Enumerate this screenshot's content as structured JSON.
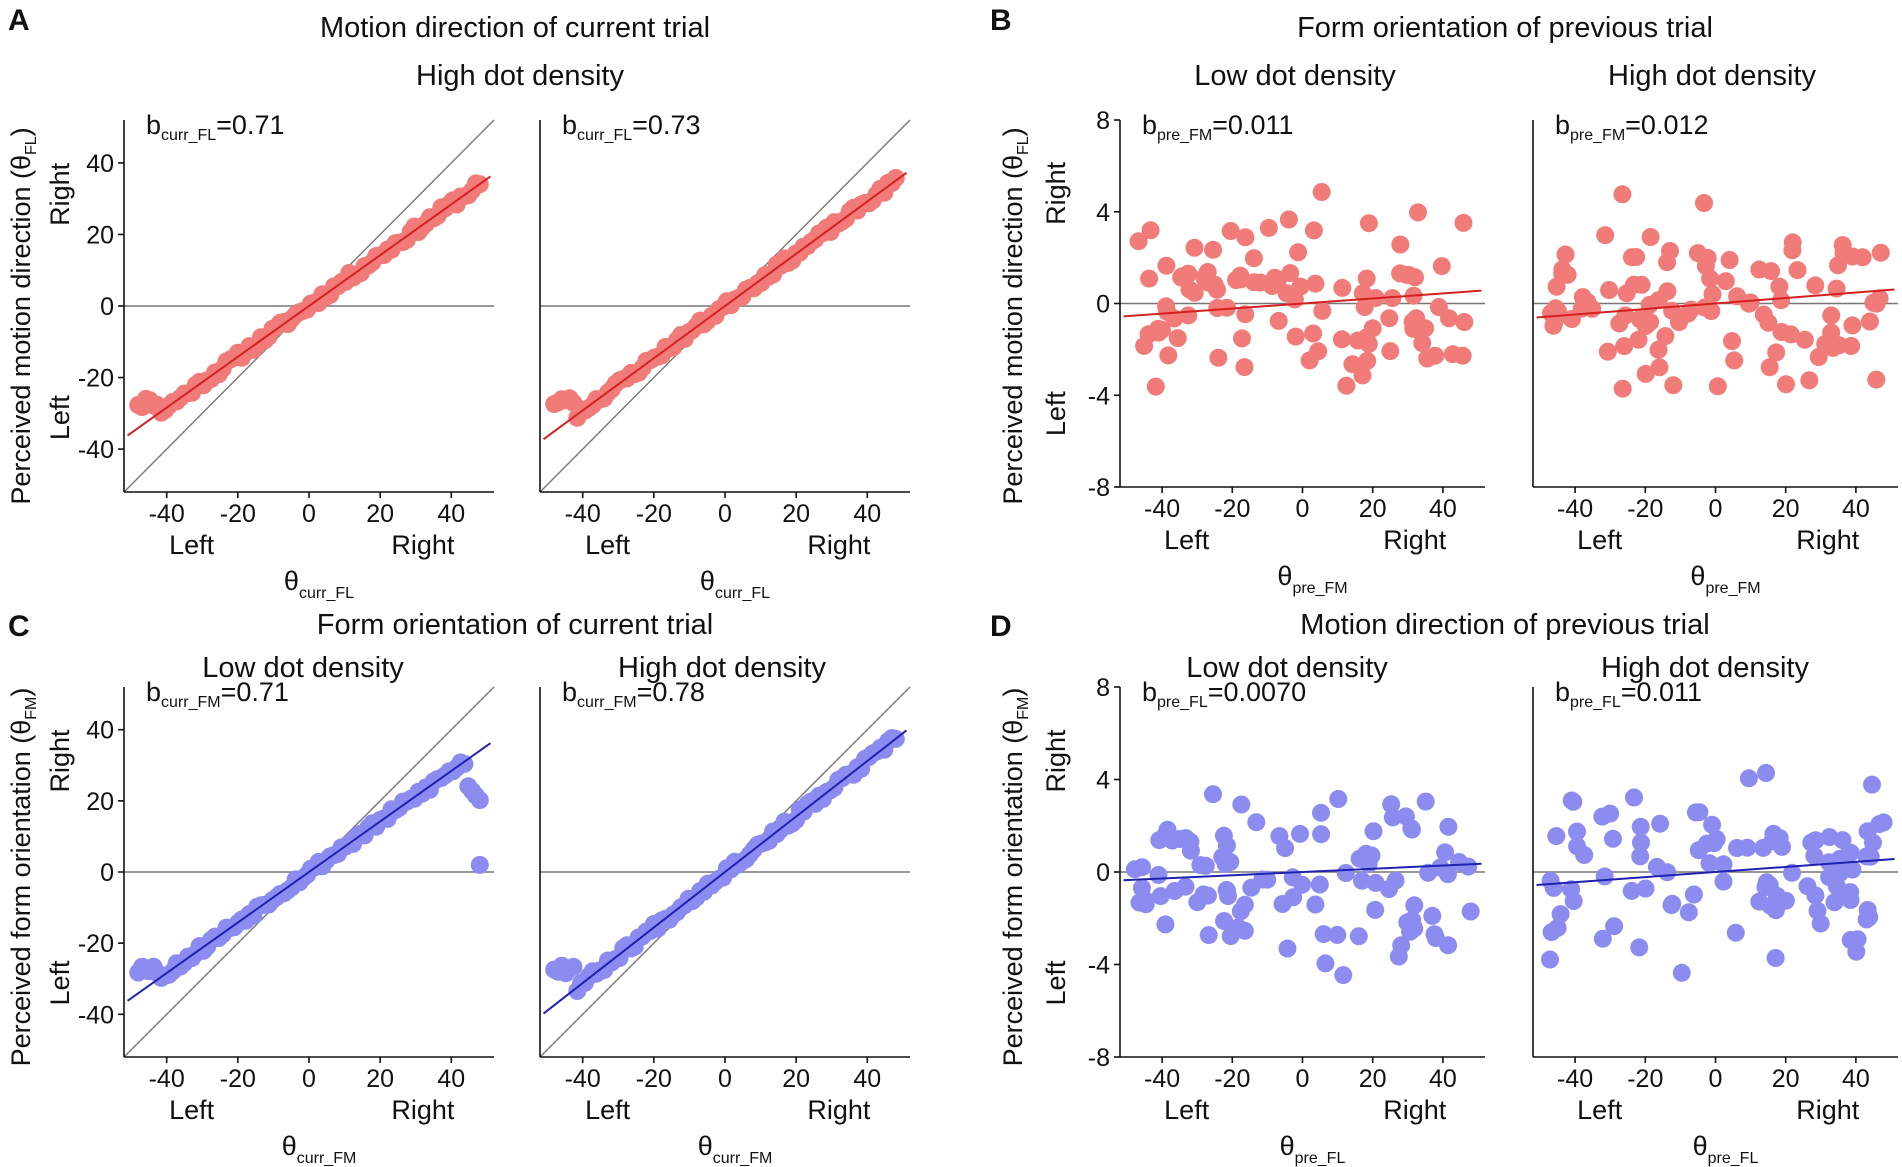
{
  "colors": {
    "red": "#f07b78",
    "red_line": "#d42020",
    "blue": "#8c8cf0",
    "blue_line": "#1f22b0",
    "ref": "#777777"
  },
  "panels": [
    {
      "letter": "A",
      "title": "Motion direction of current trial",
      "ylabel": "Perceived motion direction (θ",
      "ysub": "FL",
      "ylabel_end": ")"
    },
    {
      "letter": "B",
      "title": "Form orientation of previous trial",
      "ylabel": "Perceived motion direction (θ",
      "ysub": "FL",
      "ylabel_end": ")"
    },
    {
      "letter": "C",
      "title": "Form orientation of current trial",
      "ylabel": "Perceived form orientation (θ",
      "ysub": "FM",
      "ylabel_end": ")"
    },
    {
      "letter": "D",
      "title": "Motion direction of previous trial",
      "ylabel": "Perceived form orientation (θ",
      "ysub": "FM",
      "ylabel_end": ")"
    }
  ],
  "common": {
    "left_label": "Left",
    "right_label": "Right",
    "theta": "θ"
  },
  "chart_data": [
    {
      "id": "A1",
      "panel": "A",
      "type": "scatter",
      "subtitle": "High dot density",
      "color": "red",
      "coef_base": "b",
      "coef_sub": "curr_FL",
      "coef_val": "=0.71",
      "slope": 0.71,
      "intercept": 0,
      "xlabel_sub": "curr_FL",
      "xlim": [
        -52,
        52
      ],
      "ylim": [
        -52,
        52
      ],
      "xticks": [
        -40,
        -20,
        0,
        20,
        40
      ],
      "yticks": [
        -40,
        -20,
        0,
        20,
        40
      ],
      "kind": "current",
      "seed": 11,
      "noise": 1.2
    },
    {
      "id": "A2",
      "panel": "A",
      "type": "scatter",
      "subtitle": "",
      "color": "red",
      "coef_base": "b",
      "coef_sub": "curr_FL",
      "coef_val": "=0.73",
      "slope": 0.73,
      "intercept": 0,
      "xlabel_sub": "curr_FL",
      "xlim": [
        -52,
        52
      ],
      "ylim": [
        -52,
        52
      ],
      "xticks": [
        -40,
        -20,
        0,
        20,
        40
      ],
      "yticks": [],
      "kind": "current",
      "seed": 23,
      "noise": 1.1
    },
    {
      "id": "B1",
      "panel": "B",
      "type": "scatter",
      "subtitle": "Low dot density",
      "color": "red",
      "coef_base": "b",
      "coef_sub": "pre_FM",
      "coef_val": "=0.011",
      "slope": 0.011,
      "intercept": 0,
      "xlabel_sub": "pre_FM",
      "xlim": [
        -52,
        52
      ],
      "ylim": [
        -8,
        8
      ],
      "xticks": [
        -40,
        -20,
        0,
        20,
        40
      ],
      "yticks": [
        -8,
        -4,
        0,
        4,
        8
      ],
      "kind": "previous",
      "seed": 37,
      "noise": 2.6
    },
    {
      "id": "B2",
      "panel": "B",
      "type": "scatter",
      "subtitle": "High dot density",
      "color": "red",
      "coef_base": "b",
      "coef_sub": "pre_FM",
      "coef_val": "=0.012",
      "slope": 0.012,
      "intercept": 0,
      "xlabel_sub": "pre_FM",
      "xlim": [
        -52,
        52
      ],
      "ylim": [
        -8,
        8
      ],
      "xticks": [
        -40,
        -20,
        0,
        20,
        40
      ],
      "yticks": [],
      "kind": "previous",
      "seed": 41,
      "noise": 2.6
    },
    {
      "id": "C1",
      "panel": "C",
      "type": "scatter",
      "subtitle": "Low dot density",
      "color": "blue",
      "coef_base": "b",
      "coef_sub": "curr_FM",
      "coef_val": "=0.71",
      "slope": 0.71,
      "intercept": 0,
      "xlabel_sub": "curr_FM",
      "xlim": [
        -52,
        52
      ],
      "ylim": [
        -52,
        52
      ],
      "xticks": [
        -40,
        -20,
        0,
        20,
        40
      ],
      "yticks": [
        -40,
        -20,
        0,
        20,
        40
      ],
      "kind": "current",
      "seed": 53,
      "noise": 1.2
    },
    {
      "id": "C2",
      "panel": "C",
      "type": "scatter",
      "subtitle": "High dot density",
      "color": "blue",
      "coef_base": "b",
      "coef_sub": "curr_FM",
      "coef_val": "=0.78",
      "slope": 0.78,
      "intercept": 0,
      "xlabel_sub": "curr_FM",
      "xlim": [
        -52,
        52
      ],
      "ylim": [
        -52,
        52
      ],
      "xticks": [
        -40,
        -20,
        0,
        20,
        40
      ],
      "yticks": [],
      "kind": "current",
      "seed": 67,
      "noise": 1.2
    },
    {
      "id": "D1",
      "panel": "D",
      "type": "scatter",
      "subtitle": "Low dot density",
      "color": "blue",
      "coef_base": "b",
      "coef_sub": "pre_FL",
      "coef_val": "=0.0070",
      "slope": 0.007,
      "intercept": 0,
      "xlabel_sub": "pre_FL",
      "xlim": [
        -52,
        52
      ],
      "ylim": [
        -8,
        8
      ],
      "xticks": [
        -40,
        -20,
        0,
        20,
        40
      ],
      "yticks": [
        -8,
        -4,
        0,
        4,
        8
      ],
      "kind": "previous",
      "seed": 79,
      "noise": 2.6
    },
    {
      "id": "D2",
      "panel": "D",
      "type": "scatter",
      "subtitle": "High dot density",
      "color": "blue",
      "coef_base": "b",
      "coef_sub": "pre_FL",
      "coef_val": "=0.011",
      "slope": 0.011,
      "intercept": 0,
      "xlabel_sub": "pre_FL",
      "xlim": [
        -52,
        52
      ],
      "ylim": [
        -8,
        8
      ],
      "xticks": [
        -40,
        -20,
        0,
        20,
        40
      ],
      "yticks": [],
      "kind": "previous",
      "seed": 97,
      "noise": 2.6
    }
  ]
}
